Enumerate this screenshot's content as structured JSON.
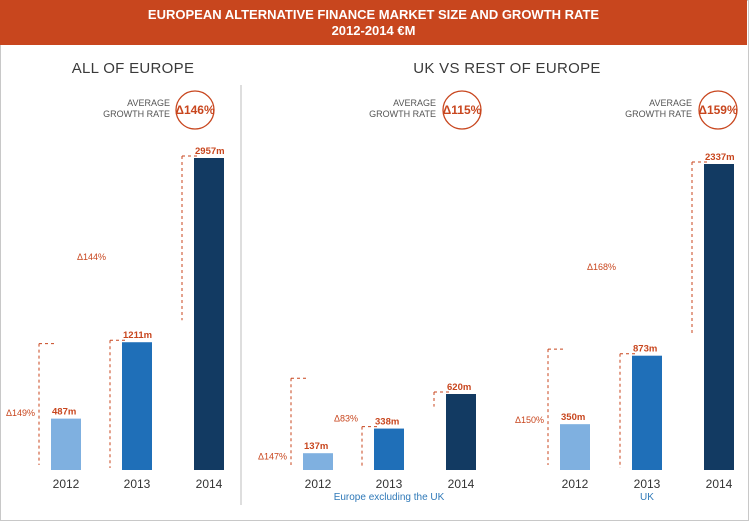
{
  "header": {
    "line1": "EUROPEAN ALTERNATIVE FINANCE MARKET SIZE AND GROWTH RATE",
    "line2": "2012-2014 €M"
  },
  "colors": {
    "banner": "#c8461e",
    "bar_2012": "#7fb0e0",
    "bar_2013": "#1f6fb8",
    "bar_2014": "#123a62",
    "accent": "#c8461e"
  },
  "chart_data": [
    {
      "type": "bar",
      "title": "ALL OF EUROPE",
      "badge_label": [
        "AVERAGE",
        "GROWTH RATE"
      ],
      "badge_value": "Δ146%",
      "categories": [
        "2012",
        "2013",
        "2014"
      ],
      "values": [
        487,
        1211,
        2957
      ],
      "value_labels": [
        "487m",
        "1211m",
        "2957m"
      ],
      "growth_labels": [
        "Δ149%",
        "Δ144%"
      ],
      "subtitle": ""
    },
    {
      "type": "bar",
      "title": "UK VS REST OF EUROPE",
      "badge_label": [
        "AVERAGE",
        "GROWTH RATE"
      ],
      "badge_value": "Δ115%",
      "categories": [
        "2012",
        "2013",
        "2014"
      ],
      "values": [
        137,
        338,
        620
      ],
      "value_labels": [
        "137m",
        "338m",
        "620m"
      ],
      "growth_labels": [
        "Δ147%",
        "Δ83%"
      ],
      "subtitle": "Europe excluding the UK"
    },
    {
      "type": "bar",
      "title": "",
      "badge_label": [
        "AVERAGE",
        "GROWTH RATE"
      ],
      "badge_value": "Δ159%",
      "categories": [
        "2012",
        "2013",
        "2014"
      ],
      "values": [
        350,
        873,
        2337
      ],
      "value_labels": [
        "350m",
        "873m",
        "2337m"
      ],
      "growth_labels": [
        "Δ150%",
        "Δ168%"
      ],
      "subtitle": "UK"
    }
  ]
}
